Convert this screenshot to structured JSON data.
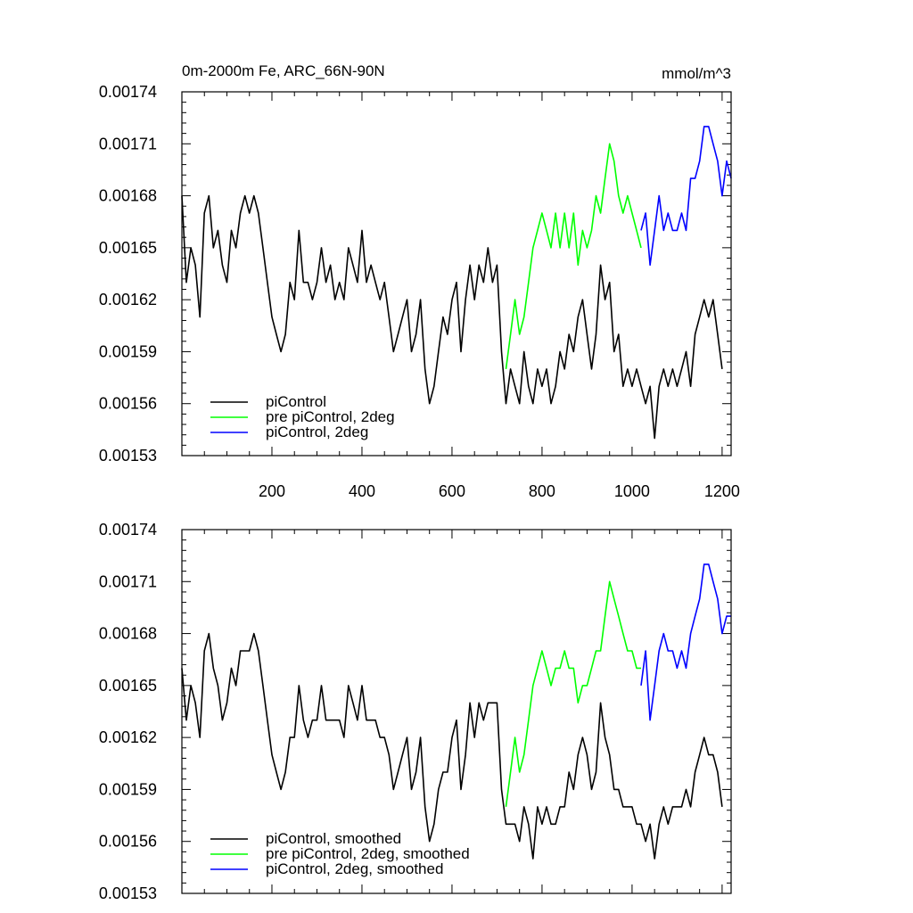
{
  "chart_data": [
    {
      "type": "line",
      "title": "0m-2000m Fe, ARC_66N-90N",
      "units": "mmol/m^3",
      "xlim": [
        0,
        1220
      ],
      "ylim": [
        0.00153,
        0.00174
      ],
      "xticks": [
        200,
        400,
        600,
        800,
        1000,
        1200
      ],
      "yticks": [
        "0.00153",
        "0.00156",
        "0.00159",
        "0.00162",
        "0.00165",
        "0.00168",
        "0.00171",
        "0.00174"
      ],
      "legend_position": "bottom-left",
      "series": [
        {
          "name": "piControl",
          "color": "#000000",
          "x": [
            0,
            10,
            20,
            30,
            40,
            50,
            60,
            70,
            80,
            90,
            100,
            110,
            120,
            130,
            140,
            150,
            160,
            170,
            180,
            190,
            200,
            210,
            220,
            230,
            240,
            250,
            260,
            270,
            280,
            290,
            300,
            310,
            320,
            330,
            340,
            350,
            360,
            370,
            380,
            390,
            400,
            410,
            420,
            430,
            440,
            450,
            460,
            470,
            480,
            490,
            500,
            510,
            520,
            530,
            540,
            550,
            560,
            570,
            580,
            590,
            600,
            610,
            620,
            630,
            640,
            650,
            660,
            670,
            680,
            690,
            700,
            710,
            720,
            730,
            740,
            750,
            760,
            770,
            780,
            790,
            800,
            810,
            820,
            830,
            840,
            850,
            860,
            870,
            880,
            890,
            900,
            910,
            920,
            930,
            940,
            950,
            960,
            970,
            980,
            990,
            1000,
            1010,
            1020,
            1030,
            1040,
            1050,
            1060,
            1070,
            1080,
            1090,
            1100,
            1110,
            1120,
            1130,
            1140,
            1150,
            1160,
            1170,
            1180,
            1190,
            1200
          ],
          "y": [
            0.00168,
            0.00163,
            0.00165,
            0.00164,
            0.00161,
            0.00167,
            0.00168,
            0.00165,
            0.00166,
            0.00164,
            0.00163,
            0.00166,
            0.00165,
            0.00167,
            0.00168,
            0.00167,
            0.00168,
            0.00167,
            0.00165,
            0.00163,
            0.00161,
            0.0016,
            0.00159,
            0.0016,
            0.00163,
            0.00162,
            0.00166,
            0.00163,
            0.00163,
            0.00162,
            0.00163,
            0.00165,
            0.00163,
            0.00164,
            0.00162,
            0.00163,
            0.00162,
            0.00165,
            0.00164,
            0.00163,
            0.00166,
            0.00163,
            0.00164,
            0.00163,
            0.00162,
            0.00163,
            0.00161,
            0.00159,
            0.0016,
            0.00161,
            0.00162,
            0.00159,
            0.0016,
            0.00162,
            0.00158,
            0.00156,
            0.00157,
            0.00159,
            0.00161,
            0.0016,
            0.00162,
            0.00163,
            0.00159,
            0.00162,
            0.00164,
            0.00162,
            0.00164,
            0.00163,
            0.00165,
            0.00163,
            0.00164,
            0.00159,
            0.00156,
            0.00158,
            0.00157,
            0.00156,
            0.00159,
            0.00157,
            0.00156,
            0.00158,
            0.00157,
            0.00158,
            0.00156,
            0.00157,
            0.00159,
            0.00158,
            0.0016,
            0.00159,
            0.00161,
            0.00162,
            0.0016,
            0.00158,
            0.0016,
            0.00164,
            0.00162,
            0.00163,
            0.00159,
            0.0016,
            0.00157,
            0.00158,
            0.00157,
            0.00158,
            0.00157,
            0.00156,
            0.00157,
            0.00154,
            0.00157,
            0.00158,
            0.00157,
            0.00158,
            0.00157,
            0.00158,
            0.00159,
            0.00157,
            0.0016,
            0.00161,
            0.00162,
            0.00161,
            0.00162,
            0.0016,
            0.00158
          ]
        },
        {
          "name": "pre piControl, 2deg",
          "color": "#00ff00",
          "x": [
            720,
            730,
            740,
            750,
            760,
            770,
            780,
            790,
            800,
            810,
            820,
            830,
            840,
            850,
            860,
            870,
            880,
            890,
            900,
            910,
            920,
            930,
            940,
            950,
            960,
            970,
            980,
            990,
            1000,
            1010,
            1020
          ],
          "y": [
            0.00158,
            0.0016,
            0.00162,
            0.0016,
            0.00161,
            0.00163,
            0.00165,
            0.00166,
            0.00167,
            0.00166,
            0.00165,
            0.00167,
            0.00165,
            0.00167,
            0.00165,
            0.00167,
            0.00164,
            0.00166,
            0.00165,
            0.00166,
            0.00168,
            0.00167,
            0.00169,
            0.00171,
            0.0017,
            0.00168,
            0.00167,
            0.00168,
            0.00167,
            0.00166,
            0.00165
          ]
        },
        {
          "name": "piControl, 2deg",
          "color": "#0000ff",
          "x": [
            1020,
            1030,
            1040,
            1050,
            1060,
            1070,
            1080,
            1090,
            1100,
            1110,
            1120,
            1130,
            1140,
            1150,
            1160,
            1170,
            1180,
            1190,
            1200,
            1210,
            1220
          ],
          "y": [
            0.00166,
            0.00167,
            0.00164,
            0.00166,
            0.00168,
            0.00166,
            0.00167,
            0.00166,
            0.00166,
            0.00167,
            0.00166,
            0.00169,
            0.00169,
            0.0017,
            0.00172,
            0.00172,
            0.00171,
            0.0017,
            0.00168,
            0.0017,
            0.00169
          ]
        }
      ]
    },
    {
      "type": "line",
      "title": "",
      "xlim": [
        0,
        1220
      ],
      "ylim": [
        0.00153,
        0.00174
      ],
      "yticks": [
        "0.00153",
        "0.00156",
        "0.00159",
        "0.00162",
        "0.00165",
        "0.00168",
        "0.00171",
        "0.00174"
      ],
      "legend_position": "bottom-left",
      "series": [
        {
          "name": "piControl, smoothed",
          "color": "#000000",
          "x": [
            0,
            10,
            20,
            30,
            40,
            50,
            60,
            70,
            80,
            90,
            100,
            110,
            120,
            130,
            140,
            150,
            160,
            170,
            180,
            190,
            200,
            210,
            220,
            230,
            240,
            250,
            260,
            270,
            280,
            290,
            300,
            310,
            320,
            330,
            340,
            350,
            360,
            370,
            380,
            390,
            400,
            410,
            420,
            430,
            440,
            450,
            460,
            470,
            480,
            490,
            500,
            510,
            520,
            530,
            540,
            550,
            560,
            570,
            580,
            590,
            600,
            610,
            620,
            630,
            640,
            650,
            660,
            670,
            680,
            690,
            700,
            710,
            720,
            730,
            740,
            750,
            760,
            770,
            780,
            790,
            800,
            810,
            820,
            830,
            840,
            850,
            860,
            870,
            880,
            890,
            900,
            910,
            920,
            930,
            940,
            950,
            960,
            970,
            980,
            990,
            1000,
            1010,
            1020,
            1030,
            1040,
            1050,
            1060,
            1070,
            1080,
            1090,
            1100,
            1110,
            1120,
            1130,
            1140,
            1150,
            1160,
            1170,
            1180,
            1190,
            1200
          ],
          "y": [
            0.00166,
            0.00163,
            0.00165,
            0.00164,
            0.00162,
            0.00167,
            0.00168,
            0.00166,
            0.00165,
            0.00163,
            0.00164,
            0.00166,
            0.00165,
            0.00167,
            0.00167,
            0.00167,
            0.00168,
            0.00167,
            0.00165,
            0.00163,
            0.00161,
            0.0016,
            0.00159,
            0.0016,
            0.00162,
            0.00162,
            0.00165,
            0.00163,
            0.00162,
            0.00163,
            0.00163,
            0.00165,
            0.00163,
            0.00163,
            0.00163,
            0.00163,
            0.00162,
            0.00165,
            0.00164,
            0.00163,
            0.00165,
            0.00163,
            0.00163,
            0.00163,
            0.00162,
            0.00162,
            0.00161,
            0.00159,
            0.0016,
            0.00161,
            0.00162,
            0.00159,
            0.0016,
            0.00162,
            0.00158,
            0.00156,
            0.00157,
            0.00159,
            0.0016,
            0.0016,
            0.00162,
            0.00163,
            0.00159,
            0.00161,
            0.00164,
            0.00162,
            0.00164,
            0.00163,
            0.00164,
            0.00164,
            0.00164,
            0.00159,
            0.00157,
            0.00157,
            0.00157,
            0.00156,
            0.00158,
            0.00157,
            0.00155,
            0.00158,
            0.00157,
            0.00158,
            0.00157,
            0.00157,
            0.00158,
            0.00158,
            0.0016,
            0.00159,
            0.00161,
            0.00162,
            0.00161,
            0.00159,
            0.0016,
            0.00164,
            0.00162,
            0.00161,
            0.00159,
            0.00159,
            0.00158,
            0.00158,
            0.00158,
            0.00157,
            0.00157,
            0.00156,
            0.00157,
            0.00155,
            0.00157,
            0.00158,
            0.00157,
            0.00158,
            0.00158,
            0.00158,
            0.00159,
            0.00158,
            0.0016,
            0.00161,
            0.00162,
            0.00161,
            0.00161,
            0.0016,
            0.00158
          ]
        },
        {
          "name": "pre piControl, 2deg, smoothed",
          "color": "#00ff00",
          "x": [
            720,
            730,
            740,
            750,
            760,
            770,
            780,
            790,
            800,
            810,
            820,
            830,
            840,
            850,
            860,
            870,
            880,
            890,
            900,
            910,
            920,
            930,
            940,
            950,
            960,
            970,
            980,
            990,
            1000,
            1010,
            1020
          ],
          "y": [
            0.00158,
            0.0016,
            0.00162,
            0.0016,
            0.00161,
            0.00163,
            0.00165,
            0.00166,
            0.00167,
            0.00166,
            0.00165,
            0.00166,
            0.00166,
            0.00167,
            0.00166,
            0.00166,
            0.00164,
            0.00165,
            0.00165,
            0.00166,
            0.00167,
            0.00167,
            0.00169,
            0.00171,
            0.0017,
            0.00169,
            0.00168,
            0.00167,
            0.00167,
            0.00166,
            0.00166
          ]
        },
        {
          "name": "piControl, 2deg, smoothed",
          "color": "#0000ff",
          "x": [
            1020,
            1030,
            1040,
            1050,
            1060,
            1070,
            1080,
            1090,
            1100,
            1110,
            1120,
            1130,
            1140,
            1150,
            1160,
            1170,
            1180,
            1190,
            1200,
            1210,
            1220
          ],
          "y": [
            0.00165,
            0.00167,
            0.00163,
            0.00165,
            0.00167,
            0.00168,
            0.00167,
            0.00167,
            0.00166,
            0.00167,
            0.00166,
            0.00168,
            0.00169,
            0.0017,
            0.00172,
            0.00172,
            0.00171,
            0.0017,
            0.00168,
            0.00169,
            0.00169
          ]
        }
      ]
    }
  ]
}
